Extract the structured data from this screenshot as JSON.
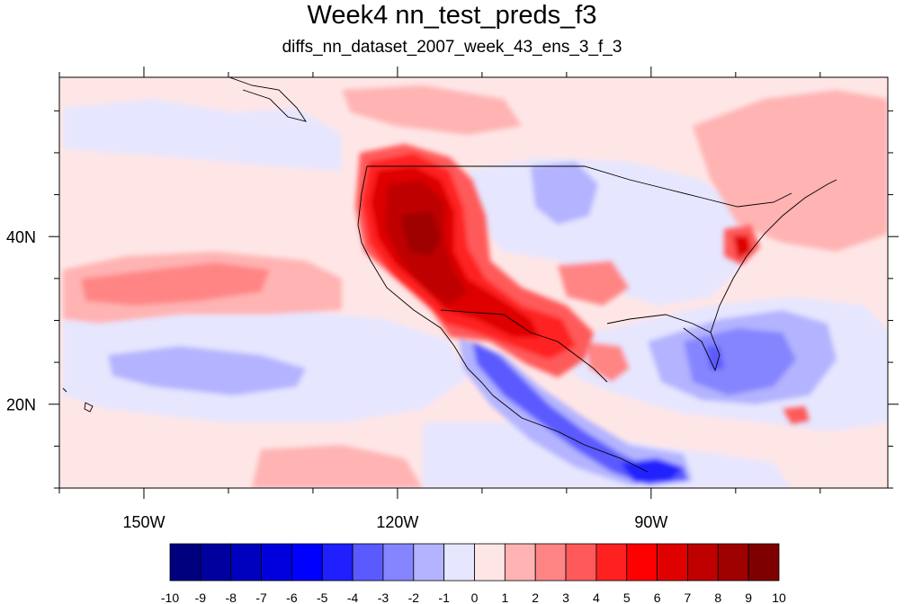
{
  "title": "Week4 nn_test_preds_f3",
  "subtitle": "diffs_nn_dataset_2007_week_43_ens_3_f_3",
  "map": {
    "type": "filled-contour",
    "lon_range": [
      -160,
      -62
    ],
    "lat_range": [
      10,
      59
    ],
    "x_ticks": [
      {
        "lon": -150,
        "label": "150W"
      },
      {
        "lon": -120,
        "label": "120W"
      },
      {
        "lon": -90,
        "label": "90W"
      }
    ],
    "y_ticks": [
      {
        "lat": 40,
        "label": "40N"
      },
      {
        "lat": 20,
        "label": "20N"
      }
    ]
  },
  "colorbar": {
    "labels": [
      "-10",
      "-9",
      "-8",
      "-7",
      "-6",
      "-5",
      "-4",
      "-3",
      "-2",
      "-1",
      "0",
      "1",
      "2",
      "3",
      "4",
      "5",
      "6",
      "7",
      "8",
      "9",
      "10"
    ],
    "colors": [
      "#00007f",
      "#00009f",
      "#0000bf",
      "#0000df",
      "#0000ff",
      "#2020ff",
      "#5a5aff",
      "#8585ff",
      "#b3b3ff",
      "#e6e6ff",
      "#ffe6e6",
      "#ffb3b3",
      "#ff8585",
      "#ff5a5a",
      "#ff2020",
      "#ff0000",
      "#df0000",
      "#bf0000",
      "#9f0000",
      "#7f0000"
    ]
  }
}
